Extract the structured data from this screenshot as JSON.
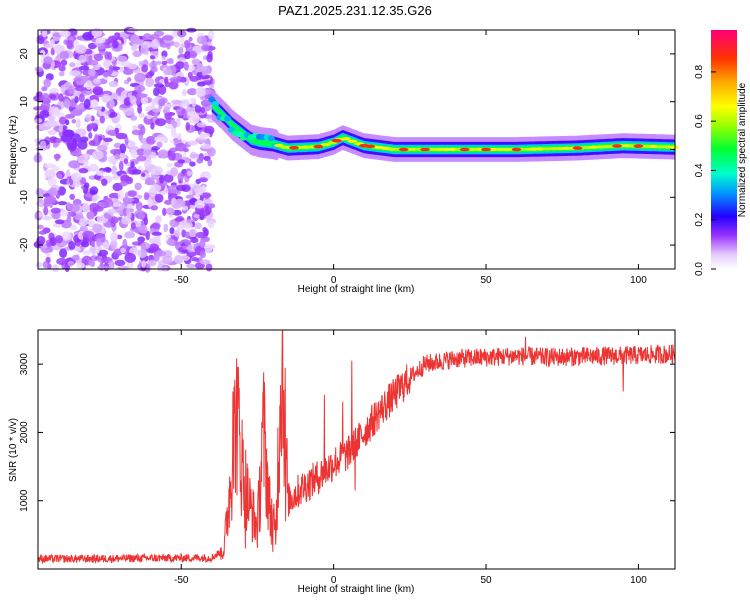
{
  "title": "PAZ1.2025.231.12.35.G26",
  "chart_data": [
    {
      "type": "heatmap",
      "panel": "spectrogram",
      "xlabel": "Height of straight line (km)",
      "ylabel": "Frequency (Hz)",
      "xlim": [
        -97,
        112
      ],
      "ylim": [
        -25,
        25
      ],
      "xticks": [
        -50,
        0,
        50,
        100
      ],
      "yticks": [
        -20,
        -10,
        0,
        10,
        20
      ],
      "colorbar": {
        "label": "Normalized spectral amplitude",
        "range": [
          0,
          0.97
        ],
        "ticks": [
          0.0,
          0.2,
          0.4,
          0.6,
          0.8
        ]
      },
      "regions": [
        {
          "name": "noise",
          "x": [
            -97,
            -40
          ],
          "freq_range": [
            -25,
            25
          ],
          "amplitude": "0.05-0.15"
        },
        {
          "name": "transition",
          "x": [
            -40,
            -18
          ],
          "freq_start": 9,
          "freq_end": 0,
          "amplitude": "0.2-0.5"
        },
        {
          "name": "tone",
          "x": [
            -18,
            112
          ],
          "freq": 0,
          "amplitude": "0.6-0.95"
        }
      ],
      "ridge": [
        {
          "x": -40,
          "f": 9.5
        },
        {
          "x": -36,
          "f": 7
        },
        {
          "x": -33,
          "f": 5
        },
        {
          "x": -30,
          "f": 3.5
        },
        {
          "x": -27,
          "f": 2
        },
        {
          "x": -24,
          "f": 1.5
        },
        {
          "x": -20,
          "f": 1.2
        },
        {
          "x": -15,
          "f": 0.3
        },
        {
          "x": -5,
          "f": 0.6
        },
        {
          "x": 0,
          "f": 1.5
        },
        {
          "x": 3,
          "f": 2.5
        },
        {
          "x": 10,
          "f": 0.8
        },
        {
          "x": 20,
          "f": 0
        },
        {
          "x": 40,
          "f": 0
        },
        {
          "x": 60,
          "f": 0
        },
        {
          "x": 80,
          "f": 0.3
        },
        {
          "x": 95,
          "f": 0.8
        },
        {
          "x": 112,
          "f": 0.5
        }
      ],
      "hotspots_x": [
        -13,
        -5,
        1,
        10,
        12,
        23,
        30,
        43,
        50,
        60,
        80,
        93,
        100
      ]
    },
    {
      "type": "line",
      "panel": "snr",
      "xlabel": "Height of straight line (km)",
      "ylabel": "SNR (10 * v/v)",
      "xlim": [
        -97,
        112
      ],
      "ylim": [
        0,
        3500
      ],
      "xticks": [
        -50,
        0,
        50,
        100
      ],
      "yticks": [
        1000,
        2000,
        3000
      ],
      "color": "#ee3333",
      "series": [
        {
          "name": "SNR",
          "points": [
            {
              "x": -97,
              "y": 150
            },
            {
              "x": -80,
              "y": 150
            },
            {
              "x": -60,
              "y": 160
            },
            {
              "x": -40,
              "y": 165
            },
            {
              "x": -36,
              "y": 280
            },
            {
              "x": -34,
              "y": 1200
            },
            {
              "x": -32,
              "y": 2300
            },
            {
              "x": -30,
              "y": 1500
            },
            {
              "x": -28,
              "y": 1000
            },
            {
              "x": -25,
              "y": 600
            },
            {
              "x": -23,
              "y": 2000
            },
            {
              "x": -21,
              "y": 900
            },
            {
              "x": -19,
              "y": 500
            },
            {
              "x": -17,
              "y": 3300
            },
            {
              "x": -15,
              "y": 1000
            },
            {
              "x": -10,
              "y": 1200
            },
            {
              "x": -5,
              "y": 1350
            },
            {
              "x": 0,
              "y": 1550
            },
            {
              "x": 5,
              "y": 1700
            },
            {
              "x": 10,
              "y": 2000
            },
            {
              "x": 15,
              "y": 2300
            },
            {
              "x": 20,
              "y": 2550
            },
            {
              "x": 25,
              "y": 2800
            },
            {
              "x": 30,
              "y": 3000
            },
            {
              "x": 40,
              "y": 3080
            },
            {
              "x": 50,
              "y": 3100
            },
            {
              "x": 60,
              "y": 3120
            },
            {
              "x": 70,
              "y": 3100
            },
            {
              "x": 80,
              "y": 3110
            },
            {
              "x": 90,
              "y": 3120
            },
            {
              "x": 100,
              "y": 3130
            },
            {
              "x": 112,
              "y": 3150
            }
          ],
          "spikes": [
            {
              "x": -33,
              "y": 2600
            },
            {
              "x": -31,
              "y": 2650
            },
            {
              "x": -29,
              "y": 300
            },
            {
              "x": -23.5,
              "y": 2150
            },
            {
              "x": -20,
              "y": 250
            },
            {
              "x": -16.8,
              "y": 3480
            },
            {
              "x": -15.8,
              "y": 700
            },
            {
              "x": -3,
              "y": 2550
            },
            {
              "x": 3,
              "y": 2450
            },
            {
              "x": 6,
              "y": 3050
            },
            {
              "x": 7,
              "y": 1150
            },
            {
              "x": 63,
              "y": 3400
            },
            {
              "x": 95,
              "y": 2600
            }
          ]
        }
      ]
    }
  ]
}
